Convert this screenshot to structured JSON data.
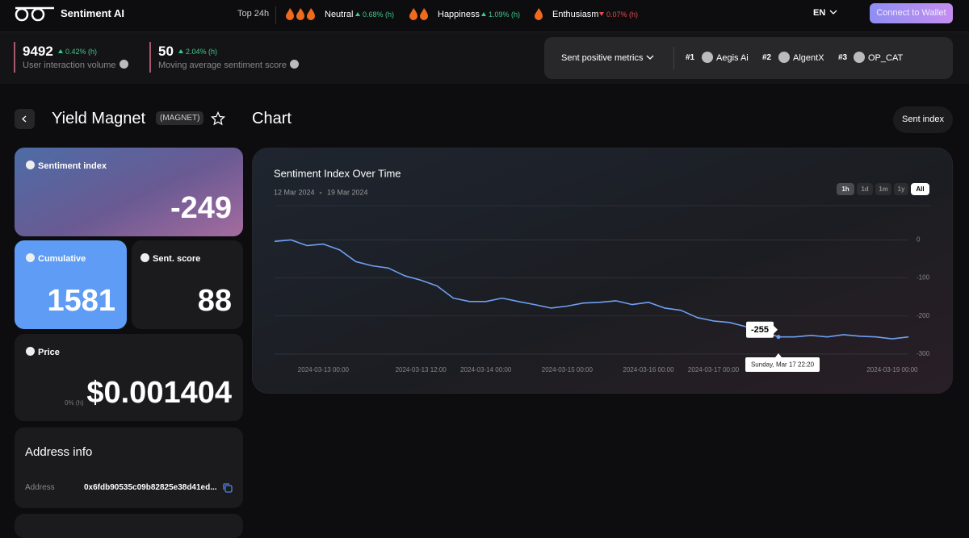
{
  "header": {
    "brand": "Sentiment AI",
    "top_label": "Top 24h",
    "moods": [
      {
        "name": "Neutral",
        "change": "0.68% (h)",
        "direction": "up"
      },
      {
        "name": "Happiness",
        "change": "1.09% (h)",
        "direction": "up"
      },
      {
        "name": "Enthusiasm",
        "change": "0.07% (h)",
        "direction": "down"
      }
    ],
    "language": "EN",
    "connect": "Connect to Wallet"
  },
  "metrics": [
    {
      "value": 9492,
      "change": "0.42% (h)",
      "label": "User interaction volume"
    },
    {
      "value": 50,
      "change": "2.04% (h)",
      "label": "Moving average sentiment score"
    }
  ],
  "ranking": {
    "label": "Sent positive metrics",
    "items": [
      {
        "rank": "#1",
        "name": "Aegis Ai"
      },
      {
        "rank": "#2",
        "name": "AlgentX"
      },
      {
        "rank": "#3",
        "name": "OP_CAT"
      }
    ]
  },
  "token": {
    "name": "Yield Magnet",
    "symbol": "(MAGNET)"
  },
  "section_title": "Chart",
  "sent_index_button": "Sent index",
  "cards": {
    "sentiment_index": {
      "label": "Sentiment index",
      "value": -249
    },
    "cumulative": {
      "label": "Cumulative",
      "value": 1581
    },
    "sent_score": {
      "label": "Sent. score",
      "value": 88
    },
    "price": {
      "label": "Price",
      "value": "$0.001404",
      "change": "0% (h)"
    }
  },
  "address_info": {
    "title": "Address info",
    "label": "Address",
    "value": "0x6fdb90535c09b82825e38d41ed..."
  },
  "chart_data": {
    "type": "line",
    "title": "Sentiment Index Over Time",
    "date_range": [
      "12 Mar 2024",
      "19 Mar 2024"
    ],
    "ranges": [
      "1h",
      "1d",
      "1m",
      "1y",
      "All"
    ],
    "active_range": "All",
    "categories": [
      null,
      null,
      null,
      "2024-03-13 00:00",
      null,
      null,
      null,
      null,
      null,
      "2024-03-13 12:00",
      null,
      null,
      null,
      "2024-03-14 00:00",
      null,
      null,
      null,
      null,
      "2024-03-15 00:00",
      null,
      null,
      null,
      null,
      "2024-03-16 00:00",
      null,
      null,
      null,
      "2024-03-17 00:00",
      null,
      null,
      null,
      null,
      null,
      null,
      null,
      null,
      null,
      null,
      "2024-03-19 00:00",
      null
    ],
    "series": [
      {
        "color": "#6f9ff2",
        "values": [
          -4,
          0,
          -15,
          -11,
          -26,
          -57,
          -68,
          -74,
          -94,
          -106,
          -121,
          -153,
          -162,
          -162,
          -153,
          -162,
          -170,
          -179,
          -174,
          -166,
          -164,
          -160,
          -170,
          -164,
          -179,
          -185,
          -204,
          -213,
          -217,
          -228,
          -238,
          -255,
          -255,
          -251,
          -255,
          -249,
          -253,
          -255,
          -260,
          -255
        ]
      }
    ],
    "ylim": [
      -315,
      90
    ],
    "yticks": [
      0,
      -100,
      -200,
      -300
    ],
    "grid": true,
    "tooltip": {
      "value": -255,
      "label": "Sunday, Mar 17 22:20"
    }
  }
}
